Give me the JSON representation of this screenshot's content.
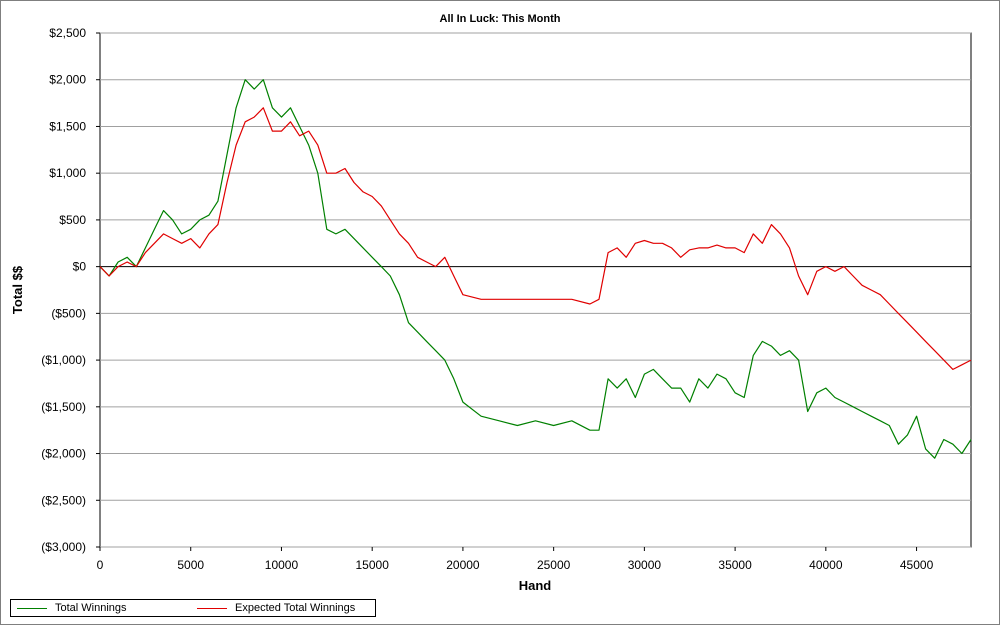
{
  "chart_data": {
    "type": "line",
    "title": "All In Luck: This Month",
    "xlabel": "Hand",
    "ylabel": "Total $$",
    "xlim": [
      0,
      48000
    ],
    "ylim": [
      -3000,
      2500
    ],
    "x_ticks": [
      0,
      5000,
      10000,
      15000,
      20000,
      25000,
      30000,
      35000,
      40000,
      45000
    ],
    "x_tick_labels": [
      "0",
      "5000",
      "10000",
      "15000",
      "20000",
      "25000",
      "30000",
      "35000",
      "40000",
      "45000"
    ],
    "y_ticks": [
      2500,
      2000,
      1500,
      1000,
      500,
      0,
      -500,
      -1000,
      -1500,
      -2000,
      -2500,
      -3000
    ],
    "y_tick_labels": [
      "$2,500",
      "$2,000",
      "$1,500",
      "$1,000",
      "$500",
      "$0",
      "($500)",
      "($1,000)",
      "($1,500)",
      "($2,000)",
      "($2,500)",
      "($3,000)"
    ],
    "grid": "horizontal",
    "legend_position": "bottom-left",
    "series": [
      {
        "name": "Total Winnings",
        "color": "#008000",
        "x": [
          0,
          500,
          1000,
          1500,
          2000,
          2500,
          3000,
          3500,
          4000,
          4500,
          5000,
          5500,
          6000,
          6500,
          7000,
          7500,
          8000,
          8500,
          9000,
          9500,
          10000,
          10500,
          11000,
          11500,
          12000,
          12500,
          13000,
          13500,
          14000,
          14500,
          15000,
          15500,
          16000,
          16500,
          17000,
          17500,
          18000,
          18500,
          19000,
          19500,
          20000,
          21000,
          22000,
          23000,
          24000,
          25000,
          26000,
          27000,
          27500,
          28000,
          28500,
          29000,
          29500,
          30000,
          30500,
          31000,
          31500,
          32000,
          32500,
          33000,
          33500,
          34000,
          34500,
          35000,
          35500,
          36000,
          36500,
          37000,
          37500,
          38000,
          38500,
          39000,
          39500,
          40000,
          40500,
          41000,
          41500,
          42000,
          42500,
          43000,
          43500,
          44000,
          44500,
          45000,
          45500,
          46000,
          46500,
          47000,
          47500,
          48000
        ],
        "values": [
          0,
          -100,
          50,
          100,
          0,
          200,
          400,
          600,
          500,
          350,
          400,
          500,
          550,
          700,
          1200,
          1700,
          2000,
          1900,
          2000,
          1700,
          1600,
          1700,
          1500,
          1300,
          1000,
          400,
          350,
          400,
          300,
          200,
          100,
          0,
          -100,
          -300,
          -600,
          -700,
          -800,
          -900,
          -1000,
          -1200,
          -1450,
          -1600,
          -1650,
          -1700,
          -1650,
          -1700,
          -1650,
          -1750,
          -1750,
          -1200,
          -1300,
          -1200,
          -1400,
          -1150,
          -1100,
          -1200,
          -1300,
          -1300,
          -1450,
          -1200,
          -1300,
          -1150,
          -1200,
          -1350,
          -1400,
          -950,
          -800,
          -850,
          -950,
          -900,
          -1000,
          -1550,
          -1350,
          -1300,
          -1400,
          -1450,
          -1500,
          -1550,
          -1600,
          -1650,
          -1700,
          -1900,
          -1800,
          -1600,
          -1950,
          -2050,
          -1850,
          -1900,
          -2000,
          -1850
        ]
      },
      {
        "name": "Expected Total Winnings",
        "color": "#e00000",
        "x": [
          0,
          500,
          1000,
          1500,
          2000,
          2500,
          3000,
          3500,
          4000,
          4500,
          5000,
          5500,
          6000,
          6500,
          7000,
          7500,
          8000,
          8500,
          9000,
          9500,
          10000,
          10500,
          11000,
          11500,
          12000,
          12500,
          13000,
          13500,
          14000,
          14500,
          15000,
          15500,
          16000,
          16500,
          17000,
          17500,
          18000,
          18500,
          19000,
          19500,
          20000,
          21000,
          22000,
          23000,
          24000,
          25000,
          26000,
          27000,
          27500,
          28000,
          28500,
          29000,
          29500,
          30000,
          30500,
          31000,
          31500,
          32000,
          32500,
          33000,
          33500,
          34000,
          34500,
          35000,
          35500,
          36000,
          36500,
          37000,
          37500,
          38000,
          38500,
          39000,
          39500,
          40000,
          40500,
          41000,
          41500,
          42000,
          42500,
          43000,
          43500,
          44000,
          44500,
          45000,
          45500,
          46000,
          46500,
          47000,
          47500,
          48000
        ],
        "values": [
          0,
          -100,
          0,
          50,
          0,
          150,
          250,
          350,
          300,
          250,
          300,
          200,
          350,
          450,
          900,
          1300,
          1550,
          1600,
          1700,
          1450,
          1450,
          1550,
          1400,
          1450,
          1300,
          1000,
          1000,
          1050,
          900,
          800,
          750,
          650,
          500,
          350,
          250,
          100,
          50,
          0,
          100,
          -100,
          -300,
          -350,
          -350,
          -350,
          -350,
          -350,
          -350,
          -400,
          -350,
          150,
          200,
          100,
          250,
          280,
          250,
          250,
          200,
          100,
          180,
          200,
          200,
          230,
          200,
          200,
          150,
          350,
          250,
          450,
          350,
          200,
          -100,
          -300,
          -50,
          0,
          -50,
          0,
          -100,
          -200,
          -250,
          -300,
          -400,
          -500,
          -600,
          -700,
          -800,
          -900,
          -1000,
          -1100,
          -1050,
          -1000
        ]
      }
    ]
  }
}
